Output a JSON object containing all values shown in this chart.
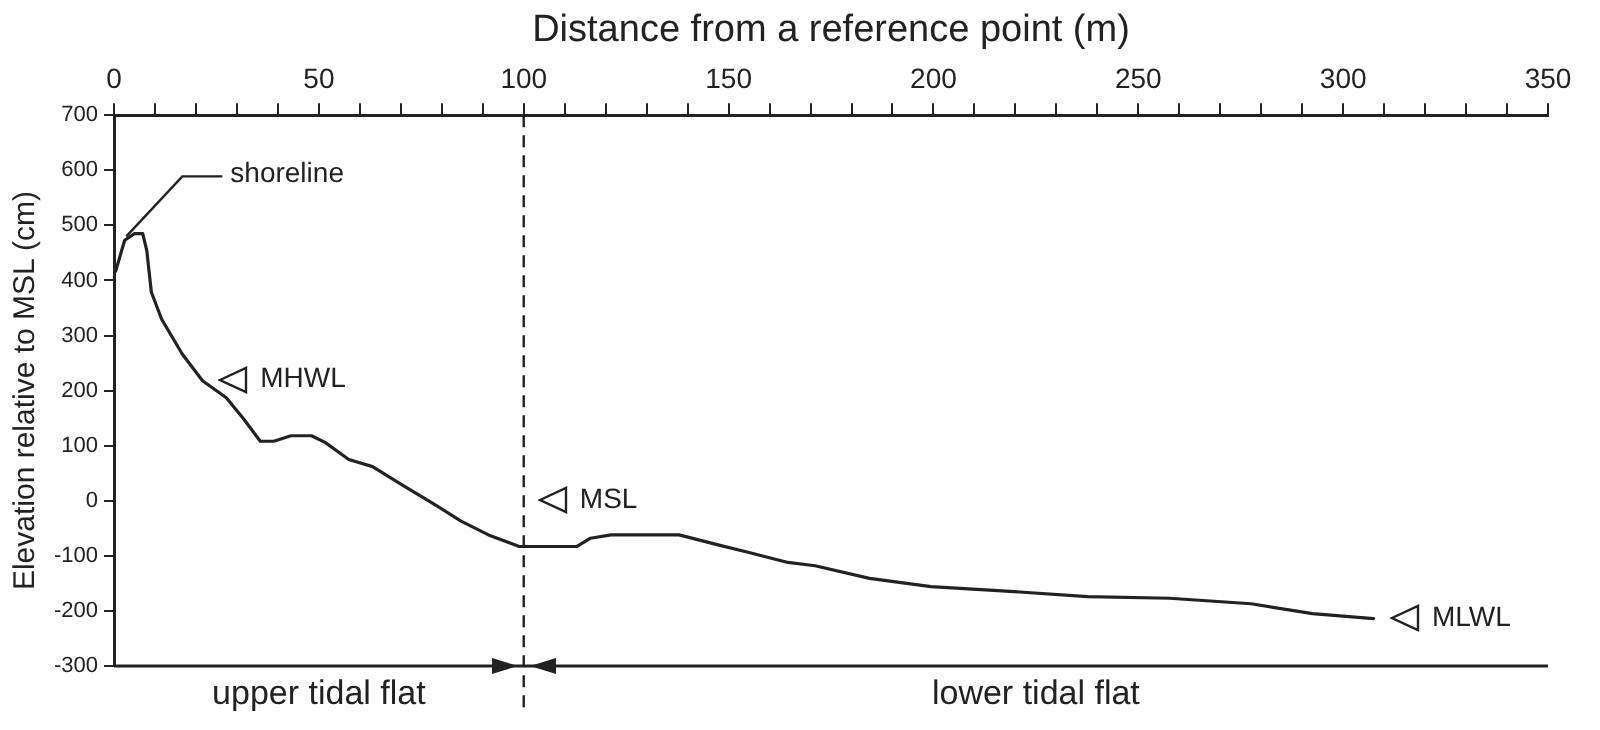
{
  "chart_data": {
    "type": "line",
    "xlabel": "Distance from a reference point (m)",
    "ylabel": "Elevation relative to MSL (cm)",
    "x": [
      0.4,
      2.6,
      5,
      7,
      8,
      9.1,
      11.6,
      16.6,
      21.6,
      27.4,
      31.6,
      35.7,
      39,
      43.2,
      48.2,
      51.5,
      57.3,
      63.1,
      69.8,
      78.1,
      84.7,
      91.4,
      98.9,
      113,
      116.3,
      121.3,
      137.9,
      147.9,
      154.5,
      164.5,
      171.1,
      184.4,
      199.4,
      217.7,
      237.6,
      257.6,
      277.5,
      292.5,
      307.4
    ],
    "values": [
      417,
      473,
      485,
      485,
      454,
      379,
      330,
      267,
      218,
      187,
      149,
      108,
      108,
      118,
      118,
      106,
      75,
      62,
      31,
      -6,
      -37,
      -62,
      -83,
      -83,
      -68,
      -62,
      -62,
      -81,
      -93,
      -112,
      -118,
      -141,
      -156,
      -164,
      -174,
      -177,
      -187,
      -205,
      -214
    ],
    "color": "#222222",
    "marker": "none",
    "line_style": "solid",
    "xlim": [
      0,
      350
    ],
    "xticks": [
      0,
      {
        "value": 10,
        "label": null
      },
      {
        "value": 20,
        "label": null
      },
      {
        "value": 30,
        "label": null
      },
      {
        "value": 40,
        "label": null
      },
      50,
      {
        "value": 60,
        "label": null
      },
      {
        "value": 70,
        "label": null
      },
      {
        "value": 80,
        "label": null
      },
      {
        "value": 90,
        "label": null
      },
      100,
      {
        "value": 110,
        "label": null
      },
      {
        "value": 120,
        "label": null
      },
      {
        "value": 130,
        "label": null
      },
      {
        "value": 140,
        "label": null
      },
      150,
      {
        "value": 160,
        "label": null
      },
      {
        "value": 170,
        "label": null
      },
      {
        "value": 180,
        "label": null
      },
      {
        "value": 190,
        "label": null
      },
      200,
      {
        "value": 210,
        "label": null
      },
      {
        "value": 220,
        "label": null
      },
      {
        "value": 230,
        "label": null
      },
      {
        "value": 240,
        "label": null
      },
      250,
      {
        "value": 260,
        "label": null
      },
      {
        "value": 270,
        "label": null
      },
      {
        "value": 280,
        "label": null
      },
      {
        "value": 290,
        "label": null
      },
      300,
      {
        "value": 310,
        "label": null
      },
      {
        "value": 320,
        "label": null
      },
      {
        "value": 330,
        "label": null
      },
      {
        "value": 340,
        "label": null
      },
      350
    ],
    "ylim": [
      -300,
      700
    ],
    "yticks": [
      -300,
      -200,
      -100,
      0,
      100,
      200,
      300,
      400,
      500,
      600,
      700
    ],
    "grid": false,
    "legend": false,
    "ref_lines": [
      {
        "axis": "x",
        "value": 100,
        "line_style": "dashed",
        "color": "#222222"
      }
    ],
    "annotations": [
      {
        "text": "shoreline",
        "x": 3,
        "y": 480
      },
      "upper tidal flat",
      "lower tidal flat",
      {
        "text": "MHWL",
        "x": 23,
        "y": 220
      },
      {
        "text": "MSL",
        "x": 101,
        "y": 0
      },
      {
        "text": "MLWL",
        "x": 309,
        "y": -214
      }
    ]
  }
}
